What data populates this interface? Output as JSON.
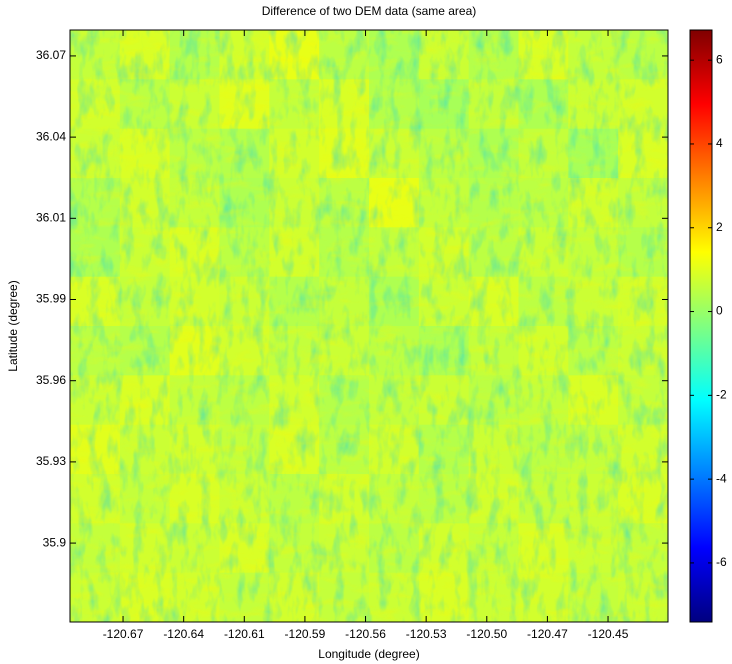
{
  "chart_data": {
    "type": "heatmap",
    "title": "Difference of two DEM data (same area)",
    "xlabel": "Longitude (degree)",
    "ylabel": "Latitude (degree)",
    "colormap": "jet",
    "xlim": [
      -120.6945,
      -120.4183
    ],
    "ylim": [
      35.8723,
      36.0801
    ],
    "xticks": [
      {
        "value": -120.67,
        "label": "-120.67"
      },
      {
        "value": -120.642,
        "label": "-120.64"
      },
      {
        "value": -120.614,
        "label": "-120.61"
      },
      {
        "value": -120.586,
        "label": "-120.59"
      },
      {
        "value": -120.558,
        "label": "-120.56"
      },
      {
        "value": -120.53,
        "label": "-120.53"
      },
      {
        "value": -120.502,
        "label": "-120.50"
      },
      {
        "value": -120.474,
        "label": "-120.47"
      },
      {
        "value": -120.446,
        "label": "-120.45"
      }
    ],
    "yticks": [
      {
        "value": 36.071,
        "label": "36.07"
      },
      {
        "value": 36.0425,
        "label": "36.04"
      },
      {
        "value": 36.014,
        "label": "36.01"
      },
      {
        "value": 35.9855,
        "label": "35.99"
      },
      {
        "value": 35.957,
        "label": "35.96"
      },
      {
        "value": 35.9285,
        "label": "35.93"
      },
      {
        "value": 35.9,
        "label": "35.9"
      }
    ],
    "clim": [
      -7.41,
      6.72
    ],
    "cticks": [
      6,
      4,
      2,
      0,
      -2,
      -4,
      -6
    ],
    "z": [
      [
        0.6,
        0.9,
        0.4,
        0.8,
        1.1,
        0.5,
        0.3,
        0.7,
        0.4,
        0.9,
        0.6,
        0.5
      ],
      [
        0.8,
        0.5,
        0.7,
        1.0,
        0.6,
        0.9,
        0.4,
        0.2,
        0.6,
        0.3,
        0.7,
        0.8
      ],
      [
        0.7,
        0.9,
        0.5,
        0.4,
        0.8,
        1.0,
        0.7,
        0.5,
        0.3,
        0.6,
        0.2,
        0.9
      ],
      [
        0.4,
        0.8,
        0.6,
        0.3,
        0.7,
        0.5,
        1.1,
        0.6,
        0.4,
        0.5,
        0.8,
        0.6
      ],
      [
        0.3,
        0.7,
        0.9,
        0.5,
        0.8,
        0.4,
        0.6,
        0.8,
        0.5,
        0.7,
        0.6,
        0.4
      ],
      [
        0.9,
        0.6,
        0.8,
        0.7,
        0.4,
        0.6,
        0.3,
        0.7,
        0.9,
        0.5,
        0.7,
        0.8
      ],
      [
        0.5,
        0.4,
        1.0,
        0.8,
        0.6,
        0.7,
        0.5,
        0.3,
        0.6,
        0.8,
        0.5,
        0.7
      ],
      [
        0.7,
        0.9,
        0.6,
        0.5,
        0.8,
        0.4,
        0.6,
        0.7,
        0.5,
        0.6,
        0.9,
        0.6
      ],
      [
        1.0,
        0.7,
        0.8,
        0.6,
        0.9,
        0.5,
        0.8,
        0.4,
        0.7,
        0.5,
        0.6,
        0.8
      ],
      [
        0.8,
        0.6,
        0.9,
        0.7,
        0.5,
        0.8,
        0.6,
        0.5,
        0.8,
        0.6,
        0.7,
        0.9
      ],
      [
        0.6,
        0.8,
        0.7,
        0.9,
        0.6,
        0.7,
        0.5,
        0.8,
        0.6,
        0.9,
        0.7,
        0.6
      ],
      [
        0.7,
        0.9,
        0.8,
        0.6,
        0.8,
        0.6,
        0.7,
        0.9,
        0.7,
        0.8,
        0.6,
        0.7
      ]
    ]
  }
}
